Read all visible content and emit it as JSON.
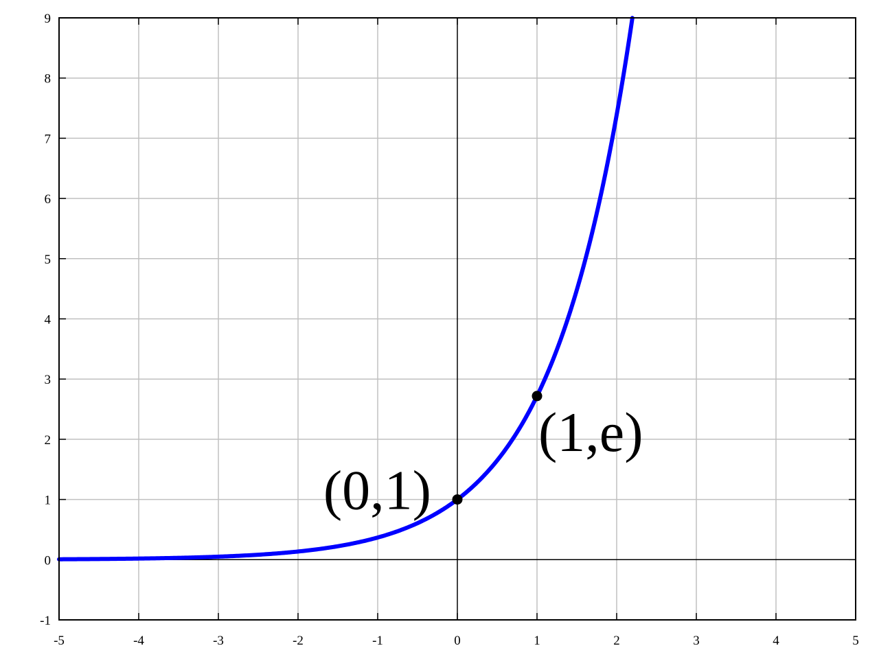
{
  "chart_data": {
    "type": "line",
    "title": "",
    "xlabel": "",
    "ylabel": "",
    "xlim": [
      -5,
      5
    ],
    "ylim": [
      -1,
      9
    ],
    "x_ticks": [
      "-5",
      "-4",
      "-3",
      "-2",
      "-1",
      "0",
      "1",
      "2",
      "3",
      "4",
      "5"
    ],
    "y_ticks": [
      "-1",
      "0",
      "1",
      "2",
      "3",
      "4",
      "5",
      "6",
      "7",
      "8",
      "9"
    ],
    "grid": true,
    "series": [
      {
        "color": "#0000ff",
        "x": [
          -5,
          -4.5,
          -4,
          -3.5,
          -3,
          -2.5,
          -2,
          -1.5,
          -1,
          -0.5,
          0,
          0.25,
          0.5,
          0.75,
          1,
          1.25,
          1.5,
          1.75,
          2,
          2.197
        ],
        "y": [
          0.007,
          0.011,
          0.018,
          0.03,
          0.05,
          0.082,
          0.135,
          0.223,
          0.368,
          0.607,
          1.0,
          1.284,
          1.649,
          2.117,
          2.718,
          3.49,
          4.482,
          5.755,
          7.389,
          9.0
        ]
      }
    ],
    "points": [
      {
        "x": 0,
        "y": 1,
        "label": "(0,1)",
        "label_side": "left"
      },
      {
        "x": 1,
        "y": 2.718,
        "label": "(1,e)",
        "label_side": "right"
      }
    ],
    "colors": {
      "curve": "#0000ff",
      "grid": "#c0c0c0",
      "axis": "#000000",
      "point": "#000000"
    }
  }
}
